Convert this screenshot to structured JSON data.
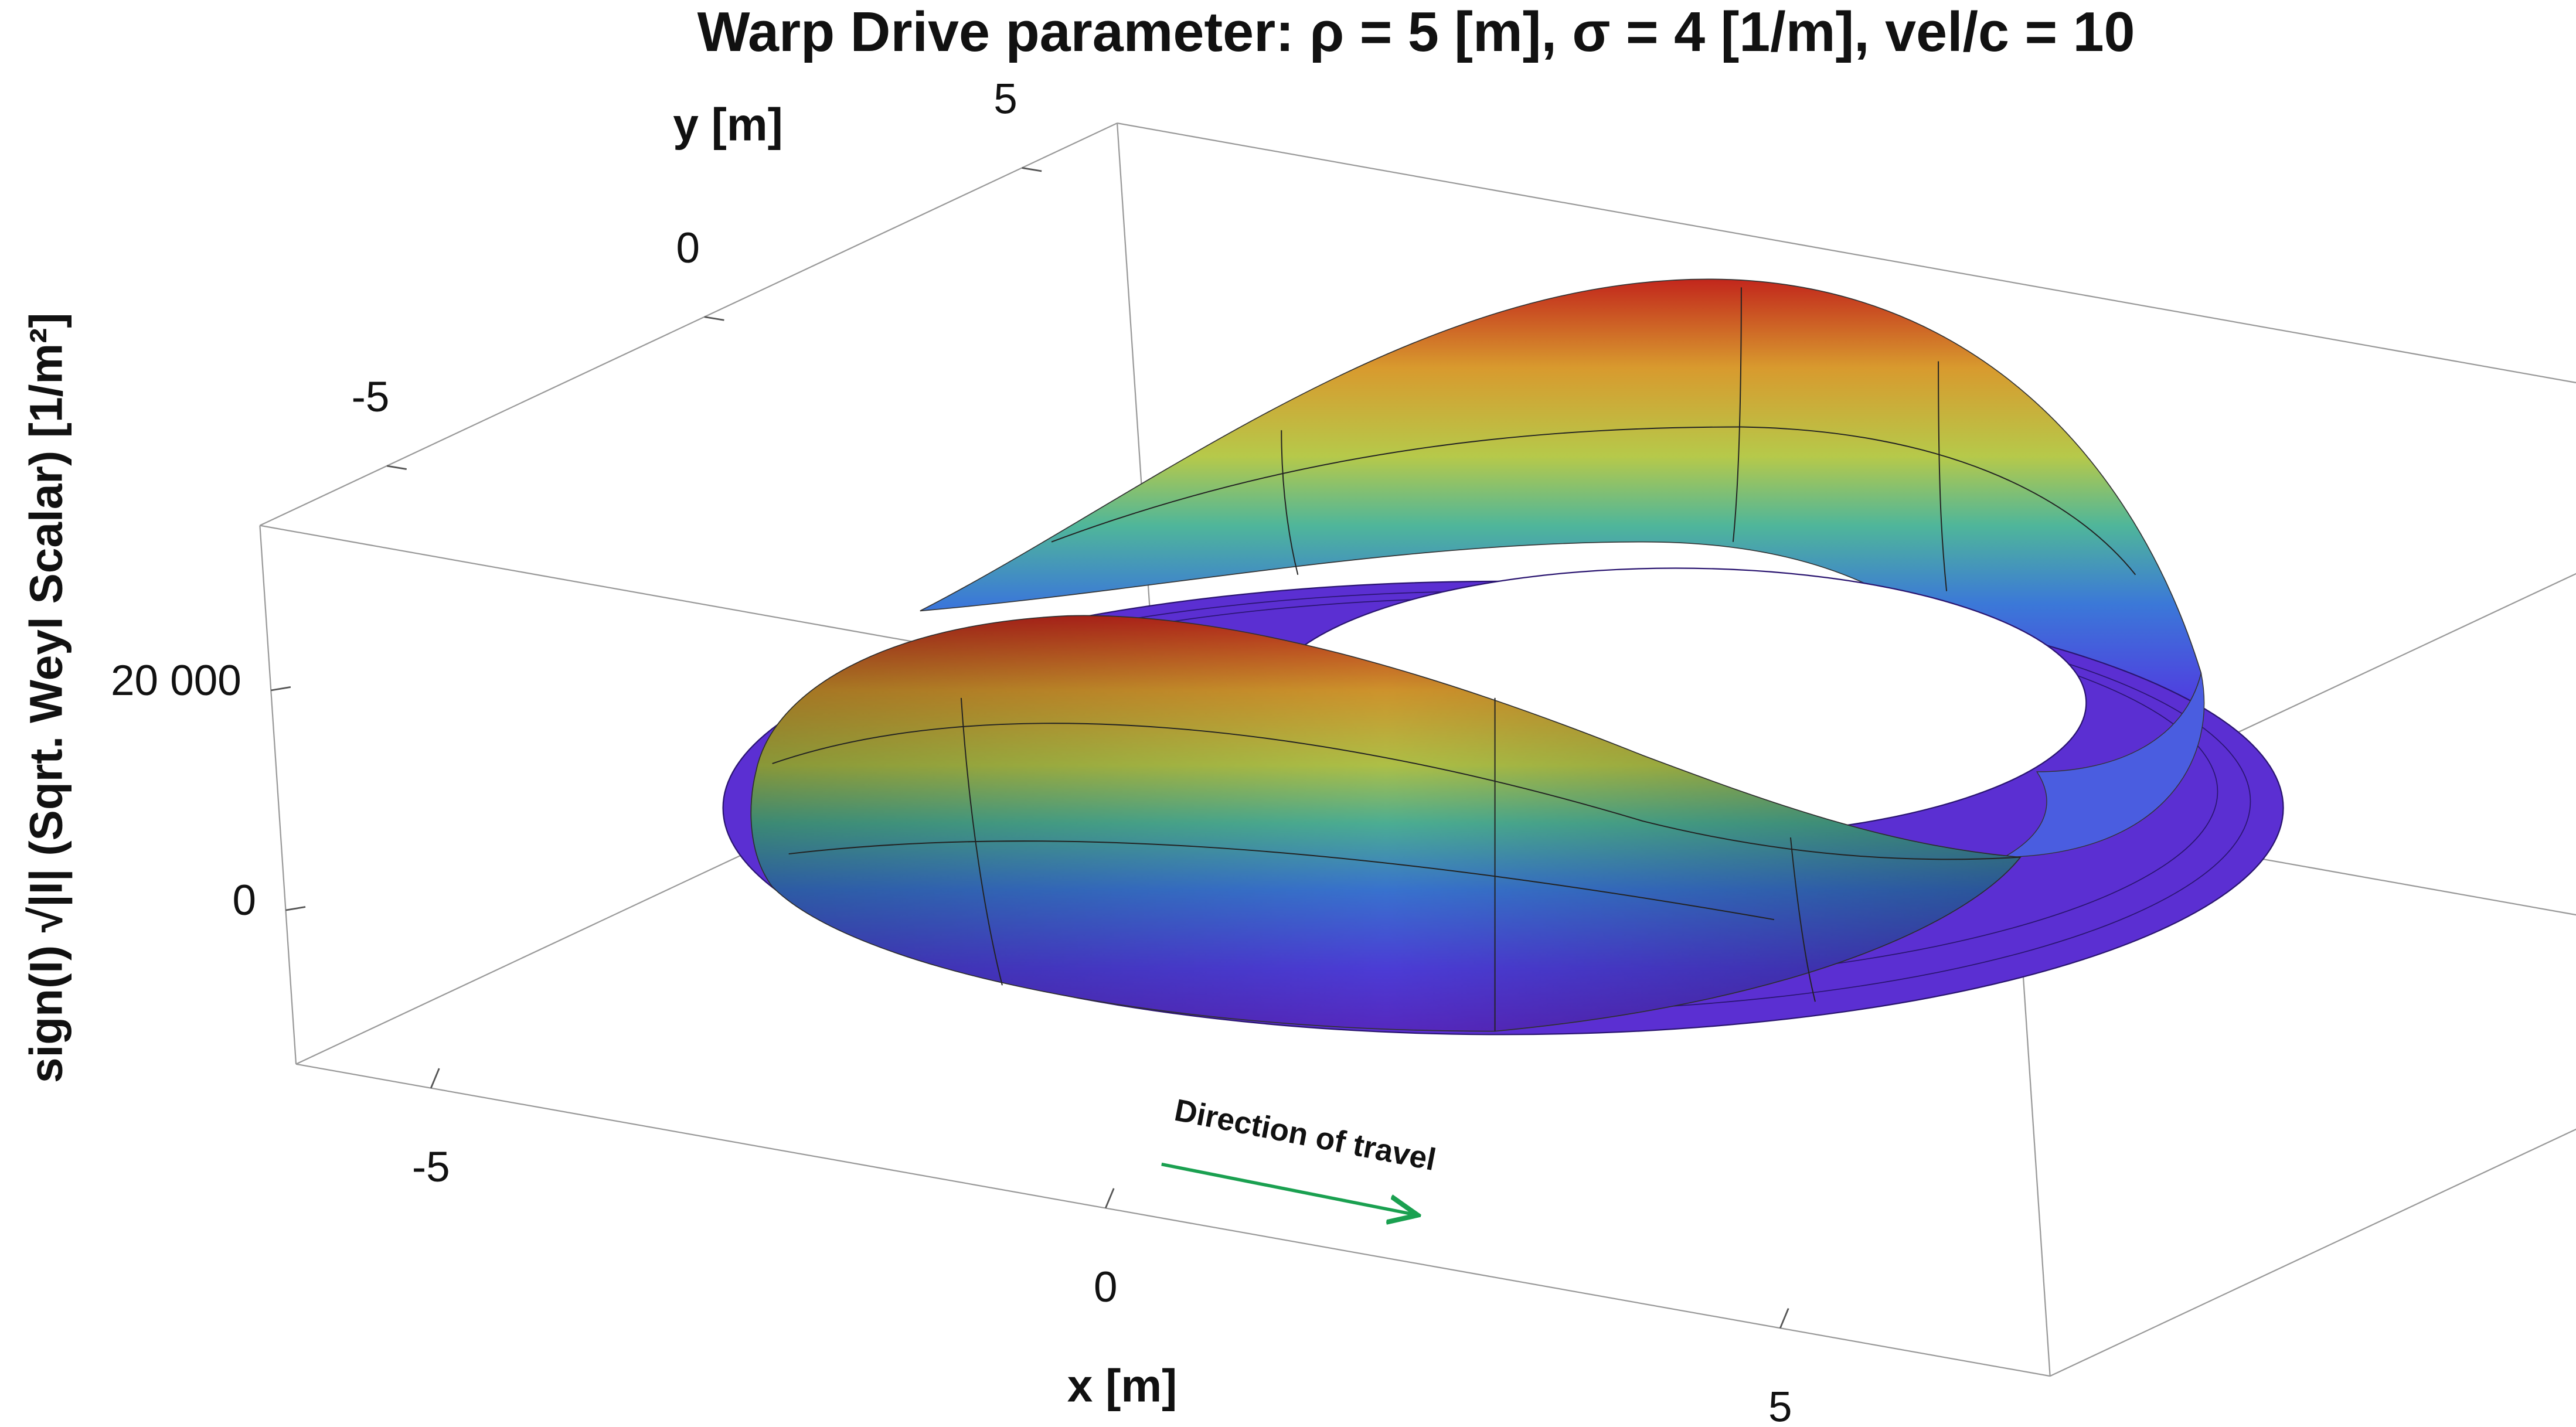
{
  "chart_data": {
    "type": "surface3d",
    "title": "Warp Drive parameter: ρ = 5 [m], σ = 4 [1/m], vel/c = 10",
    "xlabel": "x [m]",
    "ylabel": "y [m]",
    "zlabel": "sign(I) √|I| (Sqrt. Weyl Scalar) [1/m²]",
    "annotation": "Direction of travel",
    "xlim": [
      -6,
      7
    ],
    "ylim": [
      -7,
      6.5
    ],
    "zlim": [
      -14000,
      35000
    ],
    "xticks": [
      -5,
      0,
      5
    ],
    "yticks": [
      -5,
      0,
      5
    ],
    "zticks": [
      0,
      {
        "value": 20000,
        "label": "20 000"
      }
    ]
  }
}
